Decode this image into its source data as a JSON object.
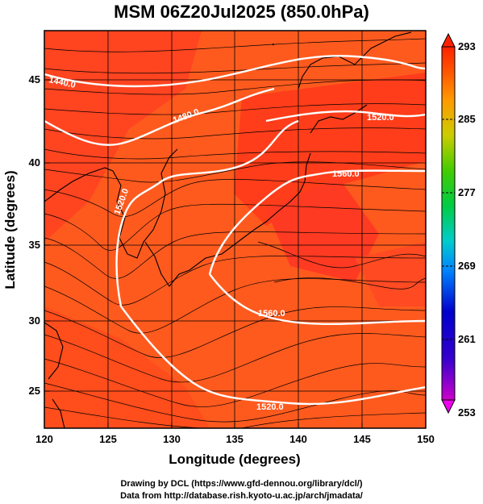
{
  "title": "MSM 06Z20Jul2025 (850.0hPa)",
  "xaxis": {
    "label": "Longitude (degrees)",
    "range": [
      120,
      150
    ],
    "ticks": [
      120,
      125,
      130,
      135,
      140,
      145,
      150
    ]
  },
  "yaxis": {
    "label": "Latitude (degrees)",
    "range": [
      22.4,
      47.6
    ],
    "ticks": [
      25,
      30,
      35,
      40,
      45
    ]
  },
  "colorbar": {
    "ticks": [
      293,
      285,
      277,
      269,
      261,
      253
    ],
    "range": [
      253,
      293
    ],
    "colors": [
      "#cc00cc",
      "#6600cc",
      "#0000cc",
      "#0066ff",
      "#00aaff",
      "#00cccc",
      "#00cc66",
      "#00cc00",
      "#66cc00",
      "#cccc00",
      "#ffcc00",
      "#ff9900",
      "#ff6600",
      "#ff3300",
      "#ff0000"
    ]
  },
  "contours": [
    {
      "label": "1440.0"
    },
    {
      "label": "1480.0"
    },
    {
      "label": "1520.0"
    },
    {
      "label": "1520.0"
    },
    {
      "label": "1560.0"
    },
    {
      "label": "1560.0"
    },
    {
      "label": "1520.0"
    }
  ],
  "credits": {
    "line1": "Drawing by DCL (https://www.gfd-dennou.org/library/dcl/)",
    "line2": "Data from http://database.rish.kyoto-u.ac.jp/arch/jmadata/"
  },
  "colors": {
    "field_base": "#ff5a1e",
    "field_warm": "#ff3d1a",
    "field_hot": "#ff2a1a",
    "contour": "#ffffff",
    "streamline": "#000000",
    "coast": "#000000"
  }
}
